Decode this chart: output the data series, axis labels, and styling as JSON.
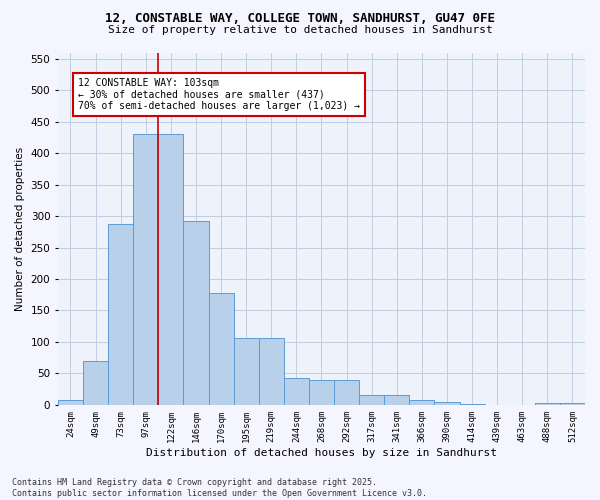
{
  "title1": "12, CONSTABLE WAY, COLLEGE TOWN, SANDHURST, GU47 0FE",
  "title2": "Size of property relative to detached houses in Sandhurst",
  "xlabel": "Distribution of detached houses by size in Sandhurst",
  "ylabel": "Number of detached properties",
  "bar_labels": [
    "24sqm",
    "49sqm",
    "73sqm",
    "97sqm",
    "122sqm",
    "146sqm",
    "170sqm",
    "195sqm",
    "219sqm",
    "244sqm",
    "268sqm",
    "292sqm",
    "317sqm",
    "341sqm",
    "366sqm",
    "390sqm",
    "414sqm",
    "439sqm",
    "463sqm",
    "488sqm",
    "512sqm"
  ],
  "bar_values": [
    8,
    70,
    287,
    430,
    430,
    292,
    178,
    106,
    106,
    43,
    40,
    40,
    16,
    16,
    8,
    5,
    2,
    0,
    0,
    3,
    3
  ],
  "bar_color": "#b8d0ea",
  "bar_edge_color": "#5b9bd5",
  "vline_x": 3.5,
  "vline_color": "#cc0000",
  "annotation_text": "12 CONSTABLE WAY: 103sqm\n← 30% of detached houses are smaller (437)\n70% of semi-detached houses are larger (1,023) →",
  "annotation_box_color": "#cc0000",
  "ylim": [
    0,
    560
  ],
  "yticks": [
    0,
    50,
    100,
    150,
    200,
    250,
    300,
    350,
    400,
    450,
    500,
    550
  ],
  "footnote": "Contains HM Land Registry data © Crown copyright and database right 2025.\nContains public sector information licensed under the Open Government Licence v3.0.",
  "bg_color": "#eef2fa",
  "fig_bg_color": "#f5f5ff",
  "grid_color": "#c0cce0"
}
